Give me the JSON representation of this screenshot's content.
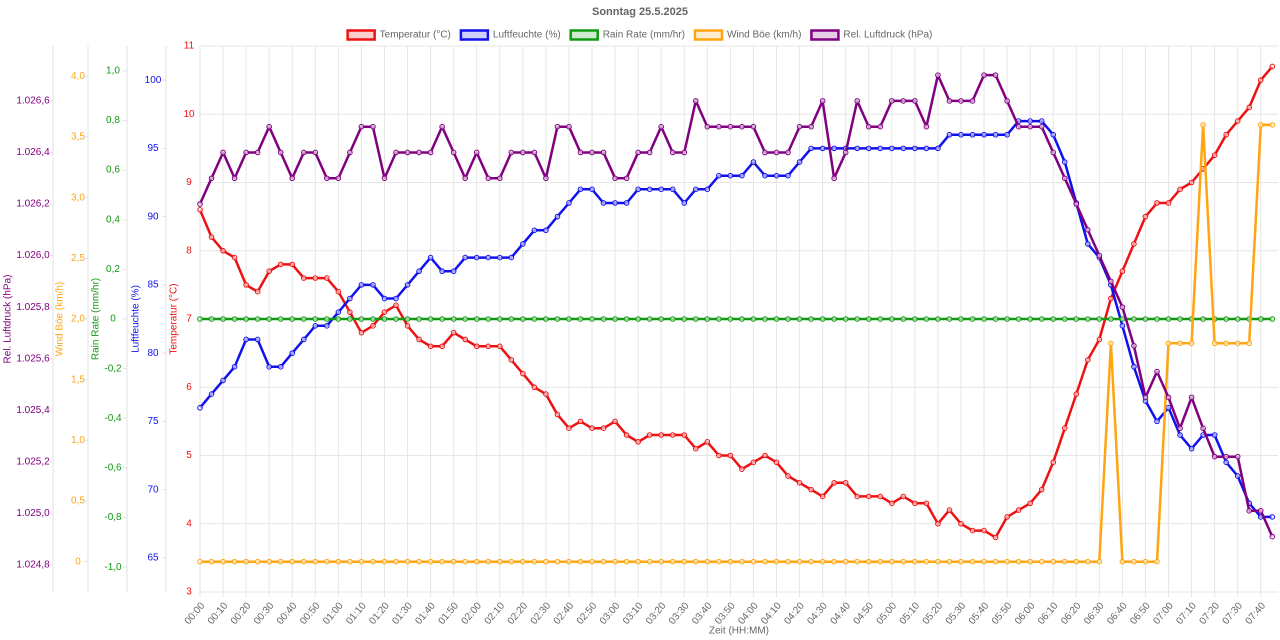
{
  "chart_data": {
    "type": "line",
    "title": "Sonntag 25.5.2025",
    "xlabel": "Zeit (HH:MM)",
    "grid": true,
    "legend": "top",
    "categories": [
      "00:00",
      null,
      "00:10",
      null,
      "00:20",
      null,
      "00:30",
      null,
      "00:40",
      null,
      "00:50",
      null,
      "01:00",
      null,
      "01:10",
      null,
      "01:20",
      null,
      "01:30",
      null,
      "01:40",
      null,
      "01:50",
      null,
      "02:00",
      null,
      "02:10",
      null,
      "02:20",
      null,
      "02:30",
      null,
      "02:40",
      null,
      "02:50",
      null,
      "03:00",
      null,
      "03:10",
      null,
      "03:20",
      null,
      "03:30",
      null,
      "03:40",
      null,
      "03:50",
      null,
      "04:00",
      null,
      "04:10",
      null,
      "04:20",
      null,
      "04:30",
      null,
      "04:40",
      null,
      "04:50",
      null,
      "05:00",
      null,
      "05:10",
      null,
      "05:20",
      null,
      "05:30",
      null,
      "05:40",
      null,
      "05:50",
      null,
      "06:00",
      null,
      "06:10",
      null,
      "06:20",
      null,
      "06:30",
      null,
      "06:40",
      null,
      "06:50",
      null,
      "07:00",
      null,
      "07:10",
      null,
      "07:20",
      null,
      "07:30",
      null,
      "07:40",
      null
    ],
    "ylabel": "Temperatur (°C)",
    "ylim": [
      3,
      11
    ],
    "yticks": [
      3,
      4,
      5,
      6,
      7,
      8,
      9,
      10,
      11
    ],
    "y2label": "Luftfeuchte (%)",
    "y2lim": [
      62.5,
      102.5
    ],
    "y2ticks": [
      65,
      70,
      75,
      80,
      85,
      90,
      95,
      100
    ],
    "y3label": "Rain Rate (mm/hr)",
    "y3lim": [
      -1.1,
      1.1
    ],
    "y3ticks": [
      {
        "value": -1,
        "label": "-1,0"
      },
      {
        "value": -0.8,
        "label": "-0,8"
      },
      {
        "value": -0.6,
        "label": "-0,6"
      },
      {
        "value": -0.4,
        "label": "-0,4"
      },
      {
        "value": -0.2,
        "label": "-0,2"
      },
      0,
      {
        "value": 0.2,
        "label": "0,2"
      },
      {
        "value": 0.4,
        "label": "0,4"
      },
      {
        "value": 0.6,
        "label": "0,6"
      },
      {
        "value": 0.8,
        "label": "0,8"
      },
      {
        "value": 1,
        "label": "1,0"
      }
    ],
    "y4label": "Wind Böe (km/h)",
    "y4lim": [
      -0.25,
      4.25
    ],
    "y4ticks": [
      0,
      {
        "value": 0.5,
        "label": "0,5"
      },
      {
        "value": 1,
        "label": "1,0"
      },
      {
        "value": 1.5,
        "label": "1,5"
      },
      {
        "value": 2,
        "label": "2,0"
      },
      {
        "value": 2.5,
        "label": "2,5"
      },
      {
        "value": 3,
        "label": "3,0"
      },
      {
        "value": 3.5,
        "label": "3,5"
      },
      {
        "value": 4,
        "label": "4,0"
      }
    ],
    "y5label": "Rel. Luftdruck (hPa)",
    "y5lim": [
      1024.695,
      1026.813
    ],
    "y5ticks": [
      {
        "value": 1024.8,
        "label": "1.024,8"
      },
      {
        "value": 1025,
        "label": "1.025,0"
      },
      {
        "value": 1025.2,
        "label": "1.025,2"
      },
      {
        "value": 1025.4,
        "label": "1.025,4"
      },
      {
        "value": 1025.6,
        "label": "1.025,6"
      },
      {
        "value": 1025.8,
        "label": "1.025,8"
      },
      {
        "value": 1026,
        "label": "1.026,0"
      },
      {
        "value": 1026.2,
        "label": "1.026,2"
      },
      {
        "value": 1026.4,
        "label": "1.026,4"
      },
      {
        "value": 1026.6,
        "label": "1.026,6"
      }
    ],
    "series": [
      {
        "name": "Temperatur (°C)",
        "color": "#ee1111",
        "axis": "y",
        "values": [
          8.6,
          8.2,
          8.0,
          7.9,
          7.5,
          7.4,
          7.7,
          7.8,
          7.8,
          7.6,
          7.6,
          7.6,
          7.4,
          7.1,
          6.8,
          6.9,
          7.1,
          7.2,
          6.9,
          6.7,
          6.6,
          6.6,
          6.8,
          6.7,
          6.6,
          6.6,
          6.6,
          6.4,
          6.2,
          6.0,
          5.9,
          5.6,
          5.4,
          5.5,
          5.4,
          5.4,
          5.5,
          5.3,
          5.2,
          5.3,
          5.3,
          5.3,
          5.3,
          5.1,
          5.2,
          5.0,
          5.0,
          4.8,
          4.9,
          5.0,
          4.9,
          4.7,
          4.6,
          4.5,
          4.4,
          4.6,
          4.6,
          4.4,
          4.4,
          4.4,
          4.3,
          4.4,
          4.3,
          4.3,
          4.0,
          4.2,
          4.0,
          3.9,
          3.9,
          3.8,
          4.1,
          4.2,
          4.3,
          4.5,
          4.9,
          5.4,
          5.9,
          6.4,
          6.7,
          7.3,
          7.7,
          8.1,
          8.5,
          8.7,
          8.7,
          8.9,
          9.0,
          9.2,
          9.4,
          9.7,
          9.9,
          10.1,
          10.5,
          10.7
        ]
      },
      {
        "name": "Luftfeuchte (%)",
        "color": "#1111ee",
        "axis": "y2",
        "values": [
          76,
          77,
          78,
          79,
          81,
          81,
          79,
          79,
          80,
          81,
          82,
          82,
          83,
          84,
          85,
          85,
          84,
          84,
          85,
          86,
          87,
          86,
          86,
          87,
          87,
          87,
          87,
          87,
          88,
          89,
          89,
          90,
          91,
          92,
          92,
          91,
          91,
          91,
          92,
          92,
          92,
          92,
          91,
          92,
          92,
          93,
          93,
          93,
          94,
          93,
          93,
          93,
          94,
          95,
          95,
          95,
          95,
          95,
          95,
          95,
          95,
          95,
          95,
          95,
          95,
          96,
          96,
          96,
          96,
          96,
          96,
          97,
          97,
          97,
          96,
          94,
          91,
          88,
          87,
          85,
          82,
          79,
          76.5,
          75,
          76,
          74,
          73,
          74,
          74,
          72,
          71,
          69,
          68,
          68
        ]
      },
      {
        "name": "Rain Rate (mm/hr)",
        "color": "#119911",
        "axis": "y3",
        "values": [
          0,
          0,
          0,
          0,
          0,
          0,
          0,
          0,
          0,
          0,
          0,
          0,
          0,
          0,
          0,
          0,
          0,
          0,
          0,
          0,
          0,
          0,
          0,
          0,
          0,
          0,
          0,
          0,
          0,
          0,
          0,
          0,
          0,
          0,
          0,
          0,
          0,
          0,
          0,
          0,
          0,
          0,
          0,
          0,
          0,
          0,
          0,
          0,
          0,
          0,
          0,
          0,
          0,
          0,
          0,
          0,
          0,
          0,
          0,
          0,
          0,
          0,
          0,
          0,
          0,
          0,
          0,
          0,
          0,
          0,
          0,
          0,
          0,
          0,
          0,
          0,
          0,
          0,
          0,
          0,
          0,
          0,
          0,
          0,
          0,
          0,
          0,
          0,
          0,
          0,
          0,
          0,
          0,
          0
        ]
      },
      {
        "name": "Wind Böe (km/h)",
        "color": "#ffa511",
        "axis": "y4",
        "values": [
          0,
          0,
          0,
          0,
          0,
          0,
          0,
          0,
          0,
          0,
          0,
          0,
          0,
          0,
          0,
          0,
          0,
          0,
          0,
          0,
          0,
          0,
          0,
          0,
          0,
          0,
          0,
          0,
          0,
          0,
          0,
          0,
          0,
          0,
          0,
          0,
          0,
          0,
          0,
          0,
          0,
          0,
          0,
          0,
          0,
          0,
          0,
          0,
          0,
          0,
          0,
          0,
          0,
          0,
          0,
          0,
          0,
          0,
          0,
          0,
          0,
          0,
          0,
          0,
          0,
          0,
          0,
          0,
          0,
          0,
          0,
          0,
          0,
          0,
          0,
          0,
          0,
          0,
          0,
          1.8,
          0,
          0,
          0,
          0,
          1.8,
          1.8,
          1.8,
          3.6,
          1.8,
          1.8,
          1.8,
          1.8,
          3.6,
          3.6
        ]
      },
      {
        "name": "Rel. Luftdruck (hPa)",
        "color": "#800080",
        "axis": "y5",
        "values": [
          1026.2,
          1026.3,
          1026.4,
          1026.3,
          1026.4,
          1026.4,
          1026.5,
          1026.4,
          1026.3,
          1026.4,
          1026.4,
          1026.3,
          1026.3,
          1026.4,
          1026.5,
          1026.5,
          1026.3,
          1026.4,
          1026.4,
          1026.4,
          1026.4,
          1026.5,
          1026.4,
          1026.3,
          1026.4,
          1026.3,
          1026.3,
          1026.4,
          1026.4,
          1026.4,
          1026.3,
          1026.5,
          1026.5,
          1026.4,
          1026.4,
          1026.4,
          1026.3,
          1026.3,
          1026.4,
          1026.4,
          1026.5,
          1026.4,
          1026.4,
          1026.6,
          1026.5,
          1026.5,
          1026.5,
          1026.5,
          1026.5,
          1026.4,
          1026.4,
          1026.4,
          1026.5,
          1026.5,
          1026.6,
          1026.3,
          1026.4,
          1026.6,
          1026.5,
          1026.5,
          1026.6,
          1026.6,
          1026.6,
          1026.5,
          1026.7,
          1026.6,
          1026.6,
          1026.6,
          1026.7,
          1026.7,
          1026.6,
          1026.5,
          1026.5,
          1026.5,
          1026.4,
          1026.3,
          1026.2,
          1026.1,
          1026.0,
          1025.9,
          1025.8,
          1025.65,
          1025.45,
          1025.55,
          1025.45,
          1025.33,
          1025.45,
          1025.33,
          1025.22,
          1025.22,
          1025.22,
          1025.01,
          1025.01,
          1024.91
        ]
      }
    ]
  }
}
